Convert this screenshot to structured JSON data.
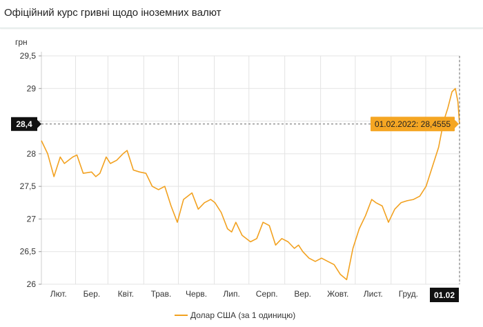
{
  "header": {
    "title": "Офіційний курс гривні щодо іноземних валют"
  },
  "chart_data": {
    "type": "line",
    "ylabel": "грн",
    "ylim": [
      26,
      29.5
    ],
    "yticks": [
      26,
      26.5,
      27,
      27.5,
      28,
      28.5,
      29,
      29.5
    ],
    "ytick_labels": [
      "26",
      "26,5",
      "27",
      "27,5",
      "28",
      "",
      "29",
      "29,5"
    ],
    "xticks": [
      {
        "label": "Лют.",
        "x": 0.0817
      },
      {
        "label": "Бер.",
        "x": 0.1591
      },
      {
        "label": "Квіт.",
        "x": 0.2448
      },
      {
        "label": "Трав.",
        "x": 0.3277
      },
      {
        "label": "Черв.",
        "x": 0.4134
      },
      {
        "label": "Лип.",
        "x": 0.4963
      },
      {
        "label": "Серп.",
        "x": 0.582
      },
      {
        "label": "Вер.",
        "x": 0.6677
      },
      {
        "label": "Жовт.",
        "x": 0.7506
      },
      {
        "label": "Лист.",
        "x": 0.8362
      },
      {
        "label": "Груд.",
        "x": 0.9191
      },
      {
        "label": "",
        "x": 1.0
      }
    ],
    "crosshair": {
      "y_label": "28,4",
      "x_label": "01.02",
      "y": 28.4555
    },
    "tooltip": "01.02.2022: 28,4555",
    "series": [
      {
        "name": "Долар США (за 1 одиницю)",
        "color": "#f2a11f",
        "x": [
          0.0,
          0.015,
          0.03,
          0.045,
          0.055,
          0.065,
          0.075,
          0.085,
          0.1,
          0.12,
          0.13,
          0.14,
          0.155,
          0.165,
          0.18,
          0.195,
          0.205,
          0.22,
          0.235,
          0.25,
          0.265,
          0.28,
          0.295,
          0.31,
          0.325,
          0.34,
          0.36,
          0.375,
          0.39,
          0.405,
          0.415,
          0.43,
          0.445,
          0.455,
          0.465,
          0.48,
          0.5,
          0.515,
          0.53,
          0.545,
          0.56,
          0.575,
          0.59,
          0.605,
          0.615,
          0.625,
          0.64,
          0.655,
          0.67,
          0.685,
          0.7,
          0.715,
          0.73,
          0.745,
          0.76,
          0.775,
          0.79,
          0.8,
          0.815,
          0.83,
          0.845,
          0.86,
          0.875,
          0.89,
          0.905,
          0.92,
          0.935,
          0.95,
          0.962,
          0.972,
          0.982,
          0.99,
          0.996,
          1.0
        ],
        "values": [
          28.2,
          28.0,
          27.65,
          27.95,
          27.85,
          27.9,
          27.95,
          27.98,
          27.7,
          27.72,
          27.65,
          27.7,
          27.95,
          27.85,
          27.9,
          28.0,
          28.05,
          27.75,
          27.72,
          27.7,
          27.5,
          27.45,
          27.5,
          27.2,
          26.95,
          27.3,
          27.4,
          27.15,
          27.25,
          27.3,
          27.25,
          27.1,
          26.85,
          26.8,
          26.95,
          26.75,
          26.65,
          26.7,
          26.95,
          26.9,
          26.6,
          26.7,
          26.65,
          26.55,
          26.6,
          26.5,
          26.4,
          26.35,
          26.4,
          26.35,
          26.3,
          26.15,
          26.07,
          26.55,
          26.85,
          27.05,
          27.3,
          27.25,
          27.2,
          26.95,
          27.15,
          27.25,
          27.28,
          27.3,
          27.35,
          27.5,
          27.8,
          28.1,
          28.5,
          28.7,
          28.95,
          29.0,
          28.8,
          28.4555
        ]
      }
    ],
    "legend": {
      "position": "bottom-center"
    }
  }
}
